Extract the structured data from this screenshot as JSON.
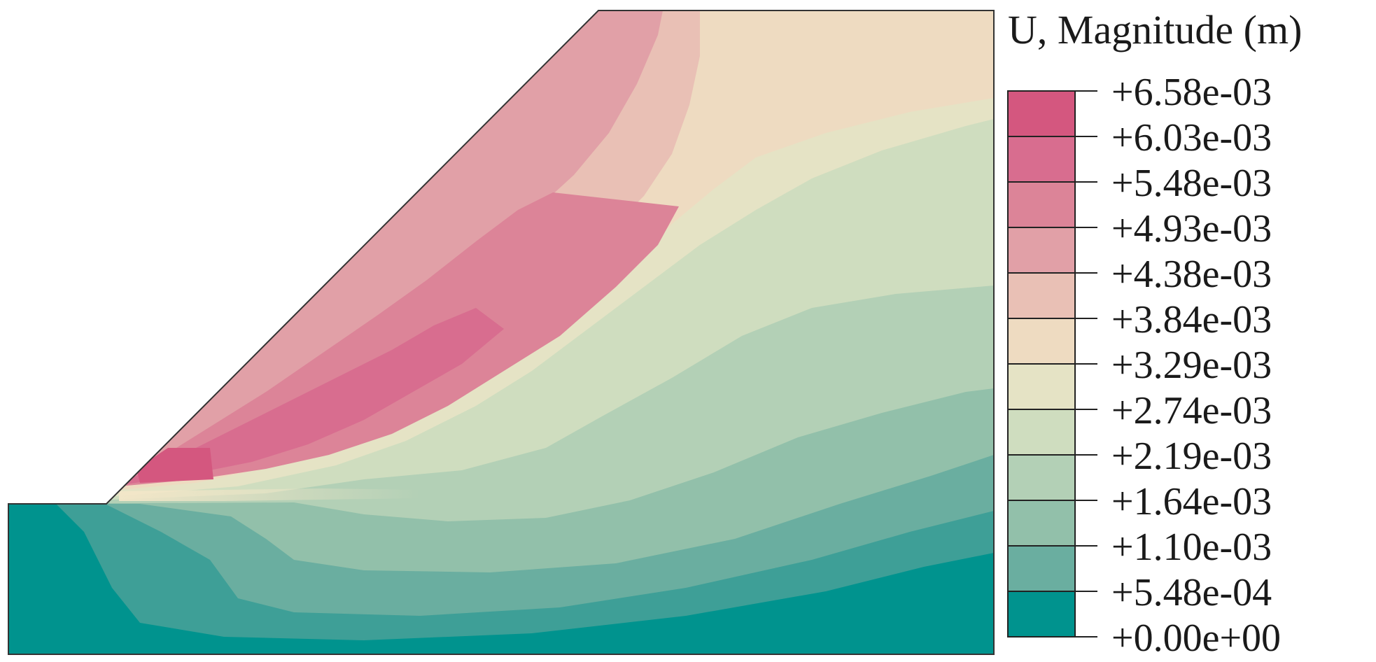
{
  "legend": {
    "title": "U, Magnitude (m)",
    "levels": [
      {
        "label": "+6.58e-03",
        "color": "#d4577f"
      },
      {
        "label": "+6.03e-03",
        "color": "#d86d8f"
      },
      {
        "label": "+5.48e-03",
        "color": "#dc8498"
      },
      {
        "label": "+4.93e-03",
        "color": "#e1a0a7"
      },
      {
        "label": "+4.38e-03",
        "color": "#e9c0b5"
      },
      {
        "label": "+3.84e-03",
        "color": "#eedbc1"
      },
      {
        "label": "+3.29e-03",
        "color": "#e5e3c5"
      },
      {
        "label": "+2.74e-03",
        "color": "#cfddbf"
      },
      {
        "label": "+2.19e-03",
        "color": "#b3d0b6"
      },
      {
        "label": "+1.64e-03",
        "color": "#92c0aa"
      },
      {
        "label": "+1.10e-03",
        "color": "#6aaea0"
      },
      {
        "label": "+5.48e-04",
        "color": "#3e9f97"
      },
      {
        "label": "+0.00e+00",
        "color": "#00938e"
      }
    ]
  }
}
